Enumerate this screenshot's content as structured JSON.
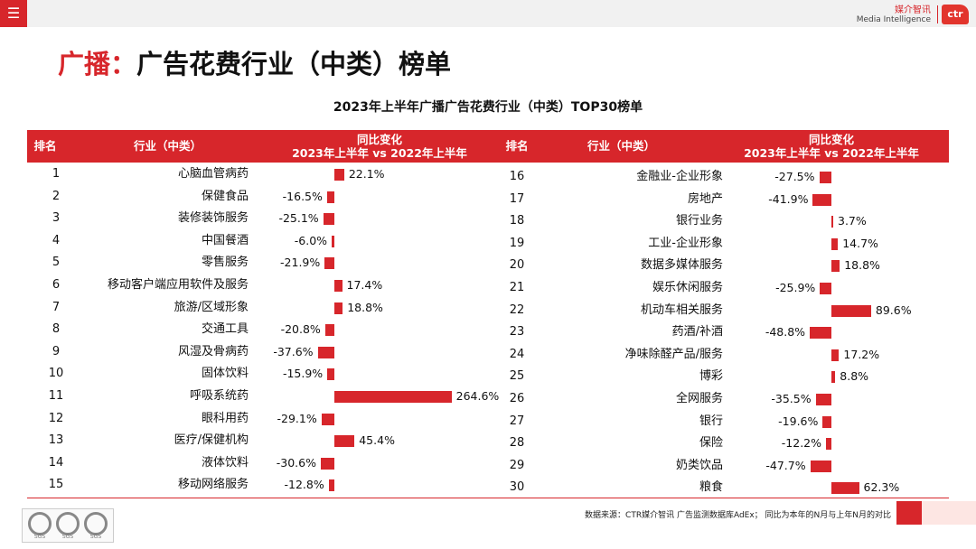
{
  "header": {
    "menu_icon": "hamburger-menu-icon",
    "brand_cn": "媒介智讯",
    "brand_en": "Media Intelligence",
    "logo_text": "ctr"
  },
  "title": {
    "prefix": "广播：",
    "main": "广告花费行业（中类）榜单"
  },
  "table_title": "2023年上半年广播广告花费行业（中类）TOP30榜单",
  "columns": {
    "rank": "排名",
    "industry": "行业（中类）",
    "change_line1": "同比变化",
    "change_line2": "2023年上半年 vs 2022年上半年"
  },
  "accent_color": "#d7262b",
  "rows_left": [
    {
      "rank": "1",
      "industry": "心脑血管病药",
      "value": 22.1,
      "label": "22.1%"
    },
    {
      "rank": "2",
      "industry": "保健食品",
      "value": -16.5,
      "label": "-16.5%"
    },
    {
      "rank": "3",
      "industry": "装修装饰服务",
      "value": -25.1,
      "label": "-25.1%"
    },
    {
      "rank": "4",
      "industry": "中国餐酒",
      "value": -6.0,
      "label": "-6.0%"
    },
    {
      "rank": "5",
      "industry": "零售服务",
      "value": -21.9,
      "label": "-21.9%"
    },
    {
      "rank": "6",
      "industry": "移动客户端应用软件及服务",
      "value": 17.4,
      "label": "17.4%"
    },
    {
      "rank": "7",
      "industry": "旅游/区域形象",
      "value": 18.8,
      "label": "18.8%"
    },
    {
      "rank": "8",
      "industry": "交通工具",
      "value": -20.8,
      "label": "-20.8%"
    },
    {
      "rank": "9",
      "industry": "风湿及骨病药",
      "value": -37.6,
      "label": "-37.6%"
    },
    {
      "rank": "10",
      "industry": "固体饮料",
      "value": -15.9,
      "label": "-15.9%"
    },
    {
      "rank": "11",
      "industry": "呼吸系统药",
      "value": 264.6,
      "label": "264.6%"
    },
    {
      "rank": "12",
      "industry": "眼科用药",
      "value": -29.1,
      "label": "-29.1%"
    },
    {
      "rank": "13",
      "industry": "医疗/保健机构",
      "value": 45.4,
      "label": "45.4%"
    },
    {
      "rank": "14",
      "industry": "液体饮料",
      "value": -30.6,
      "label": "-30.6%"
    },
    {
      "rank": "15",
      "industry": "移动网络服务",
      "value": -12.8,
      "label": "-12.8%"
    }
  ],
  "rows_right": [
    {
      "rank": "16",
      "industry": "金融业-企业形象",
      "value": -27.5,
      "label": "-27.5%"
    },
    {
      "rank": "17",
      "industry": "房地产",
      "value": -41.9,
      "label": "-41.9%"
    },
    {
      "rank": "18",
      "industry": "银行业务",
      "value": 3.7,
      "label": "3.7%"
    },
    {
      "rank": "19",
      "industry": "工业-企业形象",
      "value": 14.7,
      "label": "14.7%"
    },
    {
      "rank": "20",
      "industry": "数据多媒体服务",
      "value": 18.8,
      "label": "18.8%"
    },
    {
      "rank": "21",
      "industry": "娱乐休闲服务",
      "value": -25.9,
      "label": "-25.9%"
    },
    {
      "rank": "22",
      "industry": "机动车相关服务",
      "value": 89.6,
      "label": "89.6%"
    },
    {
      "rank": "23",
      "industry": "药酒/补酒",
      "value": -48.8,
      "label": "-48.8%"
    },
    {
      "rank": "24",
      "industry": "净味除醛产品/服务",
      "value": 17.2,
      "label": "17.2%"
    },
    {
      "rank": "25",
      "industry": "博彩",
      "value": 8.8,
      "label": "8.8%"
    },
    {
      "rank": "26",
      "industry": "全网服务",
      "value": -35.5,
      "label": "-35.5%"
    },
    {
      "rank": "27",
      "industry": "银行",
      "value": -19.6,
      "label": "-19.6%"
    },
    {
      "rank": "28",
      "industry": "保险",
      "value": -12.2,
      "label": "-12.2%"
    },
    {
      "rank": "29",
      "industry": "奶类饮品",
      "value": -47.7,
      "label": "-47.7%"
    },
    {
      "rank": "30",
      "industry": "粮食",
      "value": 62.3,
      "label": "62.3%"
    }
  ],
  "footer": {
    "source": "数据来源：CTR媒介智讯 广告监测数据库AdEx； 同比为本年的N月与上年N月的对比",
    "badge_label": "SGS"
  }
}
